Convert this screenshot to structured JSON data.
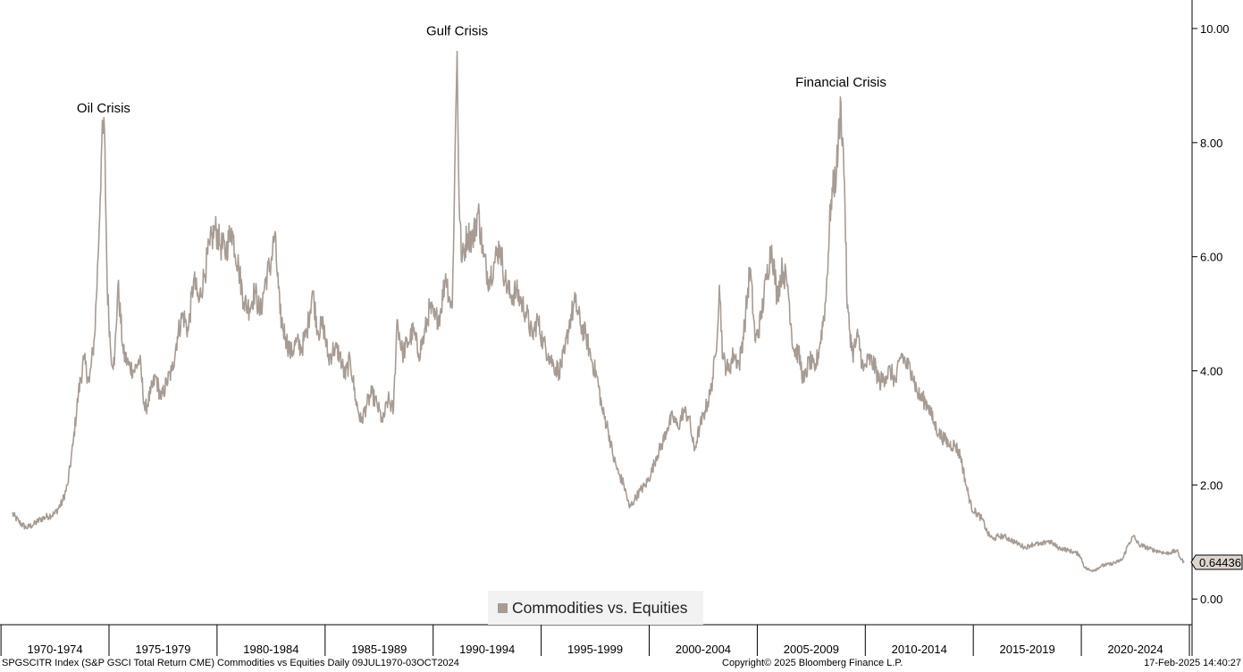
{
  "chart_data": {
    "type": "line",
    "series": [
      {
        "name": "Commodities vs. Equities",
        "color": "#a79c93",
        "points": [
          [
            "1970-07-09",
            1.5
          ],
          [
            "1970-11-01",
            1.35
          ],
          [
            "1971-03-01",
            1.25
          ],
          [
            "1971-07-01",
            1.3
          ],
          [
            "1971-11-01",
            1.4
          ],
          [
            "1972-03-01",
            1.45
          ],
          [
            "1972-07-01",
            1.5
          ],
          [
            "1972-11-01",
            1.7
          ],
          [
            "1973-02-01",
            2.0
          ],
          [
            "1973-05-01",
            2.7
          ],
          [
            "1973-08-01",
            3.6
          ],
          [
            "1973-11-01",
            4.2
          ],
          [
            "1974-02-01",
            3.8
          ],
          [
            "1974-05-01",
            4.6
          ],
          [
            "1974-07-01",
            6.0
          ],
          [
            "1974-09-01",
            8.0
          ],
          [
            "1974-10-15",
            8.25
          ],
          [
            "1974-12-01",
            5.5
          ],
          [
            "1975-02-01",
            4.3
          ],
          [
            "1975-04-01",
            4.1
          ],
          [
            "1975-06-01",
            5.5
          ],
          [
            "1975-09-01",
            4.3
          ],
          [
            "1975-12-01",
            4.1
          ],
          [
            "1976-03-01",
            4.0
          ],
          [
            "1976-06-01",
            4.2
          ],
          [
            "1976-09-01",
            3.3
          ],
          [
            "1976-12-01",
            3.6
          ],
          [
            "1977-03-01",
            3.9
          ],
          [
            "1977-06-01",
            3.5
          ],
          [
            "1977-09-01",
            3.8
          ],
          [
            "1977-12-01",
            4.0
          ],
          [
            "1978-03-01",
            4.6
          ],
          [
            "1978-06-01",
            5.0
          ],
          [
            "1978-09-01",
            4.7
          ],
          [
            "1978-12-01",
            5.6
          ],
          [
            "1979-03-01",
            5.2
          ],
          [
            "1979-06-01",
            5.7
          ],
          [
            "1979-09-01",
            6.2
          ],
          [
            "1979-12-01",
            6.5
          ],
          [
            "1980-03-01",
            6.2
          ],
          [
            "1980-06-01",
            6.1
          ],
          [
            "1980-09-01",
            6.5
          ],
          [
            "1981-01-01",
            5.8
          ],
          [
            "1981-04-01",
            5.2
          ],
          [
            "1981-07-01",
            5.1
          ],
          [
            "1981-10-01",
            5.4
          ],
          [
            "1982-01-01",
            5.0
          ],
          [
            "1982-04-01",
            5.6
          ],
          [
            "1982-07-01",
            5.9
          ],
          [
            "1982-09-01",
            6.4
          ],
          [
            "1982-12-01",
            5.0
          ],
          [
            "1983-03-01",
            4.6
          ],
          [
            "1983-06-01",
            4.3
          ],
          [
            "1983-09-01",
            4.5
          ],
          [
            "1983-12-01",
            4.4
          ],
          [
            "1984-03-01",
            4.7
          ],
          [
            "1984-06-01",
            5.4
          ],
          [
            "1984-09-01",
            4.7
          ],
          [
            "1984-12-01",
            4.8
          ],
          [
            "1985-03-01",
            4.2
          ],
          [
            "1985-06-01",
            4.4
          ],
          [
            "1985-09-01",
            4.3
          ],
          [
            "1985-12-01",
            3.9
          ],
          [
            "1986-03-01",
            4.2
          ],
          [
            "1986-06-01",
            3.5
          ],
          [
            "1986-09-01",
            3.1
          ],
          [
            "1986-12-01",
            3.4
          ],
          [
            "1987-03-01",
            3.6
          ],
          [
            "1987-06-01",
            3.4
          ],
          [
            "1987-09-01",
            3.1
          ],
          [
            "1987-12-01",
            3.5
          ],
          [
            "1988-03-01",
            3.3
          ],
          [
            "1988-05-01",
            4.9
          ],
          [
            "1988-08-01",
            4.3
          ],
          [
            "1988-11-01",
            4.5
          ],
          [
            "1989-02-01",
            4.7
          ],
          [
            "1989-05-01",
            4.3
          ],
          [
            "1989-08-01",
            4.6
          ],
          [
            "1989-11-01",
            5.1
          ],
          [
            "1990-02-01",
            4.9
          ],
          [
            "1990-05-01",
            5.0
          ],
          [
            "1990-08-01",
            5.7
          ],
          [
            "1990-10-01",
            5.3
          ],
          [
            "1990-11-20",
            5.1
          ],
          [
            "1991-01-01",
            7.5
          ],
          [
            "1991-02-10",
            9.6
          ],
          [
            "1991-03-15",
            7.0
          ],
          [
            "1991-05-01",
            5.9
          ],
          [
            "1991-08-01",
            6.4
          ],
          [
            "1991-11-01",
            6.3
          ],
          [
            "1992-02-01",
            6.8
          ],
          [
            "1992-05-01",
            6.0
          ],
          [
            "1992-08-01",
            5.6
          ],
          [
            "1992-11-01",
            5.9
          ],
          [
            "1993-02-01",
            6.2
          ],
          [
            "1993-05-01",
            5.6
          ],
          [
            "1993-08-01",
            5.3
          ],
          [
            "1993-11-01",
            5.4
          ],
          [
            "1994-02-01",
            5.2
          ],
          [
            "1994-05-01",
            5.0
          ],
          [
            "1994-08-01",
            4.6
          ],
          [
            "1994-11-01",
            4.9
          ],
          [
            "1995-02-01",
            4.5
          ],
          [
            "1995-05-01",
            4.3
          ],
          [
            "1995-08-01",
            4.1
          ],
          [
            "1995-11-01",
            4.0
          ],
          [
            "1996-02-01",
            4.3
          ],
          [
            "1996-05-01",
            4.9
          ],
          [
            "1996-08-01",
            5.2
          ],
          [
            "1996-11-01",
            4.8
          ],
          [
            "1997-02-01",
            4.6
          ],
          [
            "1997-05-01",
            4.2
          ],
          [
            "1997-08-01",
            3.9
          ],
          [
            "1997-11-01",
            3.3
          ],
          [
            "1998-02-01",
            3.0
          ],
          [
            "1998-05-01",
            2.5
          ],
          [
            "1998-08-01",
            2.2
          ],
          [
            "1998-11-01",
            2.0
          ],
          [
            "1999-02-01",
            1.6
          ],
          [
            "1999-05-01",
            1.75
          ],
          [
            "1999-08-01",
            1.9
          ],
          [
            "1999-11-01",
            2.0
          ],
          [
            "2000-02-01",
            2.2
          ],
          [
            "2000-05-01",
            2.5
          ],
          [
            "2000-08-01",
            2.7
          ],
          [
            "2000-11-01",
            3.0
          ],
          [
            "2001-02-01",
            3.2
          ],
          [
            "2001-05-01",
            3.0
          ],
          [
            "2001-08-01",
            3.3
          ],
          [
            "2001-11-01",
            3.2
          ],
          [
            "2002-02-01",
            2.6
          ],
          [
            "2002-05-01",
            3.0
          ],
          [
            "2002-08-01",
            3.3
          ],
          [
            "2002-11-01",
            3.6
          ],
          [
            "2003-02-01",
            4.3
          ],
          [
            "2003-04-01",
            5.5
          ],
          [
            "2003-06-01",
            4.2
          ],
          [
            "2003-09-01",
            4.0
          ],
          [
            "2003-12-01",
            4.3
          ],
          [
            "2004-03-01",
            4.1
          ],
          [
            "2004-06-01",
            4.8
          ],
          [
            "2004-09-01",
            5.8
          ],
          [
            "2004-12-01",
            4.5
          ],
          [
            "2005-03-01",
            4.9
          ],
          [
            "2005-06-01",
            5.6
          ],
          [
            "2005-09-01",
            6.2
          ],
          [
            "2005-12-01",
            5.3
          ],
          [
            "2006-03-01",
            5.8
          ],
          [
            "2006-06-01",
            5.5
          ],
          [
            "2006-09-01",
            4.4
          ],
          [
            "2006-12-01",
            4.3
          ],
          [
            "2007-03-01",
            3.8
          ],
          [
            "2007-06-01",
            4.2
          ],
          [
            "2007-09-01",
            4.0
          ],
          [
            "2007-12-01",
            4.5
          ],
          [
            "2008-03-01",
            5.2
          ],
          [
            "2008-06-01",
            7.0
          ],
          [
            "2008-09-01",
            7.5
          ],
          [
            "2008-11-15",
            8.7
          ],
          [
            "2009-01-15",
            7.3
          ],
          [
            "2009-03-01",
            5.1
          ],
          [
            "2009-06-01",
            4.3
          ],
          [
            "2009-09-01",
            4.6
          ],
          [
            "2009-12-01",
            4.0
          ],
          [
            "2010-03-01",
            4.2
          ],
          [
            "2010-06-01",
            4.1
          ],
          [
            "2010-09-01",
            3.8
          ],
          [
            "2010-12-01",
            3.9
          ],
          [
            "2011-03-01",
            4.0
          ],
          [
            "2011-06-01",
            3.8
          ],
          [
            "2011-09-01",
            4.3
          ],
          [
            "2011-12-01",
            4.1
          ],
          [
            "2012-03-01",
            4.0
          ],
          [
            "2012-06-01",
            3.6
          ],
          [
            "2012-09-01",
            3.5
          ],
          [
            "2012-12-01",
            3.4
          ],
          [
            "2013-03-01",
            3.1
          ],
          [
            "2013-06-01",
            2.9
          ],
          [
            "2013-09-01",
            2.8
          ],
          [
            "2013-12-01",
            2.7
          ],
          [
            "2014-03-01",
            2.7
          ],
          [
            "2014-06-01",
            2.5
          ],
          [
            "2014-09-01",
            2.0
          ],
          [
            "2014-12-01",
            1.6
          ],
          [
            "2015-03-01",
            1.5
          ],
          [
            "2015-06-01",
            1.4
          ],
          [
            "2015-09-01",
            1.15
          ],
          [
            "2015-12-01",
            1.05
          ],
          [
            "2016-03-01",
            1.1
          ],
          [
            "2016-06-01",
            1.1
          ],
          [
            "2016-09-01",
            1.05
          ],
          [
            "2016-12-01",
            1.0
          ],
          [
            "2017-03-01",
            0.95
          ],
          [
            "2017-06-01",
            0.9
          ],
          [
            "2017-09-01",
            0.95
          ],
          [
            "2017-12-01",
            0.97
          ],
          [
            "2018-03-01",
            0.95
          ],
          [
            "2018-06-01",
            1.02
          ],
          [
            "2018-09-01",
            0.98
          ],
          [
            "2018-12-01",
            0.9
          ],
          [
            "2019-03-01",
            0.88
          ],
          [
            "2019-06-01",
            0.85
          ],
          [
            "2019-09-01",
            0.82
          ],
          [
            "2019-12-01",
            0.78
          ],
          [
            "2020-03-01",
            0.55
          ],
          [
            "2020-06-01",
            0.5
          ],
          [
            "2020-09-01",
            0.52
          ],
          [
            "2020-12-01",
            0.58
          ],
          [
            "2021-03-01",
            0.6
          ],
          [
            "2021-06-01",
            0.62
          ],
          [
            "2021-09-01",
            0.65
          ],
          [
            "2021-12-01",
            0.7
          ],
          [
            "2022-03-01",
            0.95
          ],
          [
            "2022-06-01",
            1.1
          ],
          [
            "2022-09-01",
            0.95
          ],
          [
            "2022-12-01",
            0.92
          ],
          [
            "2023-03-01",
            0.88
          ],
          [
            "2023-06-01",
            0.85
          ],
          [
            "2023-09-01",
            0.83
          ],
          [
            "2023-12-01",
            0.8
          ],
          [
            "2024-03-01",
            0.82
          ],
          [
            "2024-06-01",
            0.85
          ],
          [
            "2024-08-01",
            0.72
          ],
          [
            "2024-10-03",
            0.64436
          ]
        ]
      }
    ],
    "x_range": [
      "1969-12-15",
      "2025-02-15"
    ],
    "ylim": [
      -0.45,
      10.5
    ],
    "y_ticks": [
      "0.00",
      "2.00",
      "4.00",
      "6.00",
      "8.00",
      "10.00"
    ],
    "y_tick_values": [
      0,
      2,
      4,
      6,
      8,
      10
    ],
    "x_tick_labels": [
      "1970-1974",
      "1975-1979",
      "1980-1984",
      "1985-1989",
      "1990-1994",
      "1995-1999",
      "2000-2004",
      "2005-2009",
      "2010-2014",
      "2015-2019",
      "2020-2024"
    ],
    "x_tick_boundaries": [
      "1970-01-01",
      "1975-01-01",
      "1980-01-01",
      "1985-01-01",
      "1990-01-01",
      "1995-01-01",
      "2000-01-01",
      "2005-01-01",
      "2010-01-01",
      "2015-01-01",
      "2020-01-01",
      "2025-01-01"
    ],
    "y_axis_side": "right",
    "grid": false,
    "legend_position": "bottom-center",
    "annotations": [
      {
        "text": "Oil Crisis",
        "x": "1974-10-01",
        "y": 8.25
      },
      {
        "text": "Gulf Crisis",
        "x": "1991-02-10",
        "y": 9.6
      },
      {
        "text": "Financial Crisis",
        "x": "2008-11-15",
        "y": 8.7
      }
    ],
    "last_value_label": "0.64436"
  },
  "legend": {
    "label": "Commodities vs. Equities",
    "color": "#a79c93"
  },
  "footer": {
    "left": "SPGSCITR Index (S&P GSCI Total Return CME) Commodities vs Equities  Daily 09JUL1970-03OCT2024",
    "center": "Copyright© 2025 Bloomberg Finance L.P.",
    "right": "17-Feb-2025 14:40:27"
  }
}
